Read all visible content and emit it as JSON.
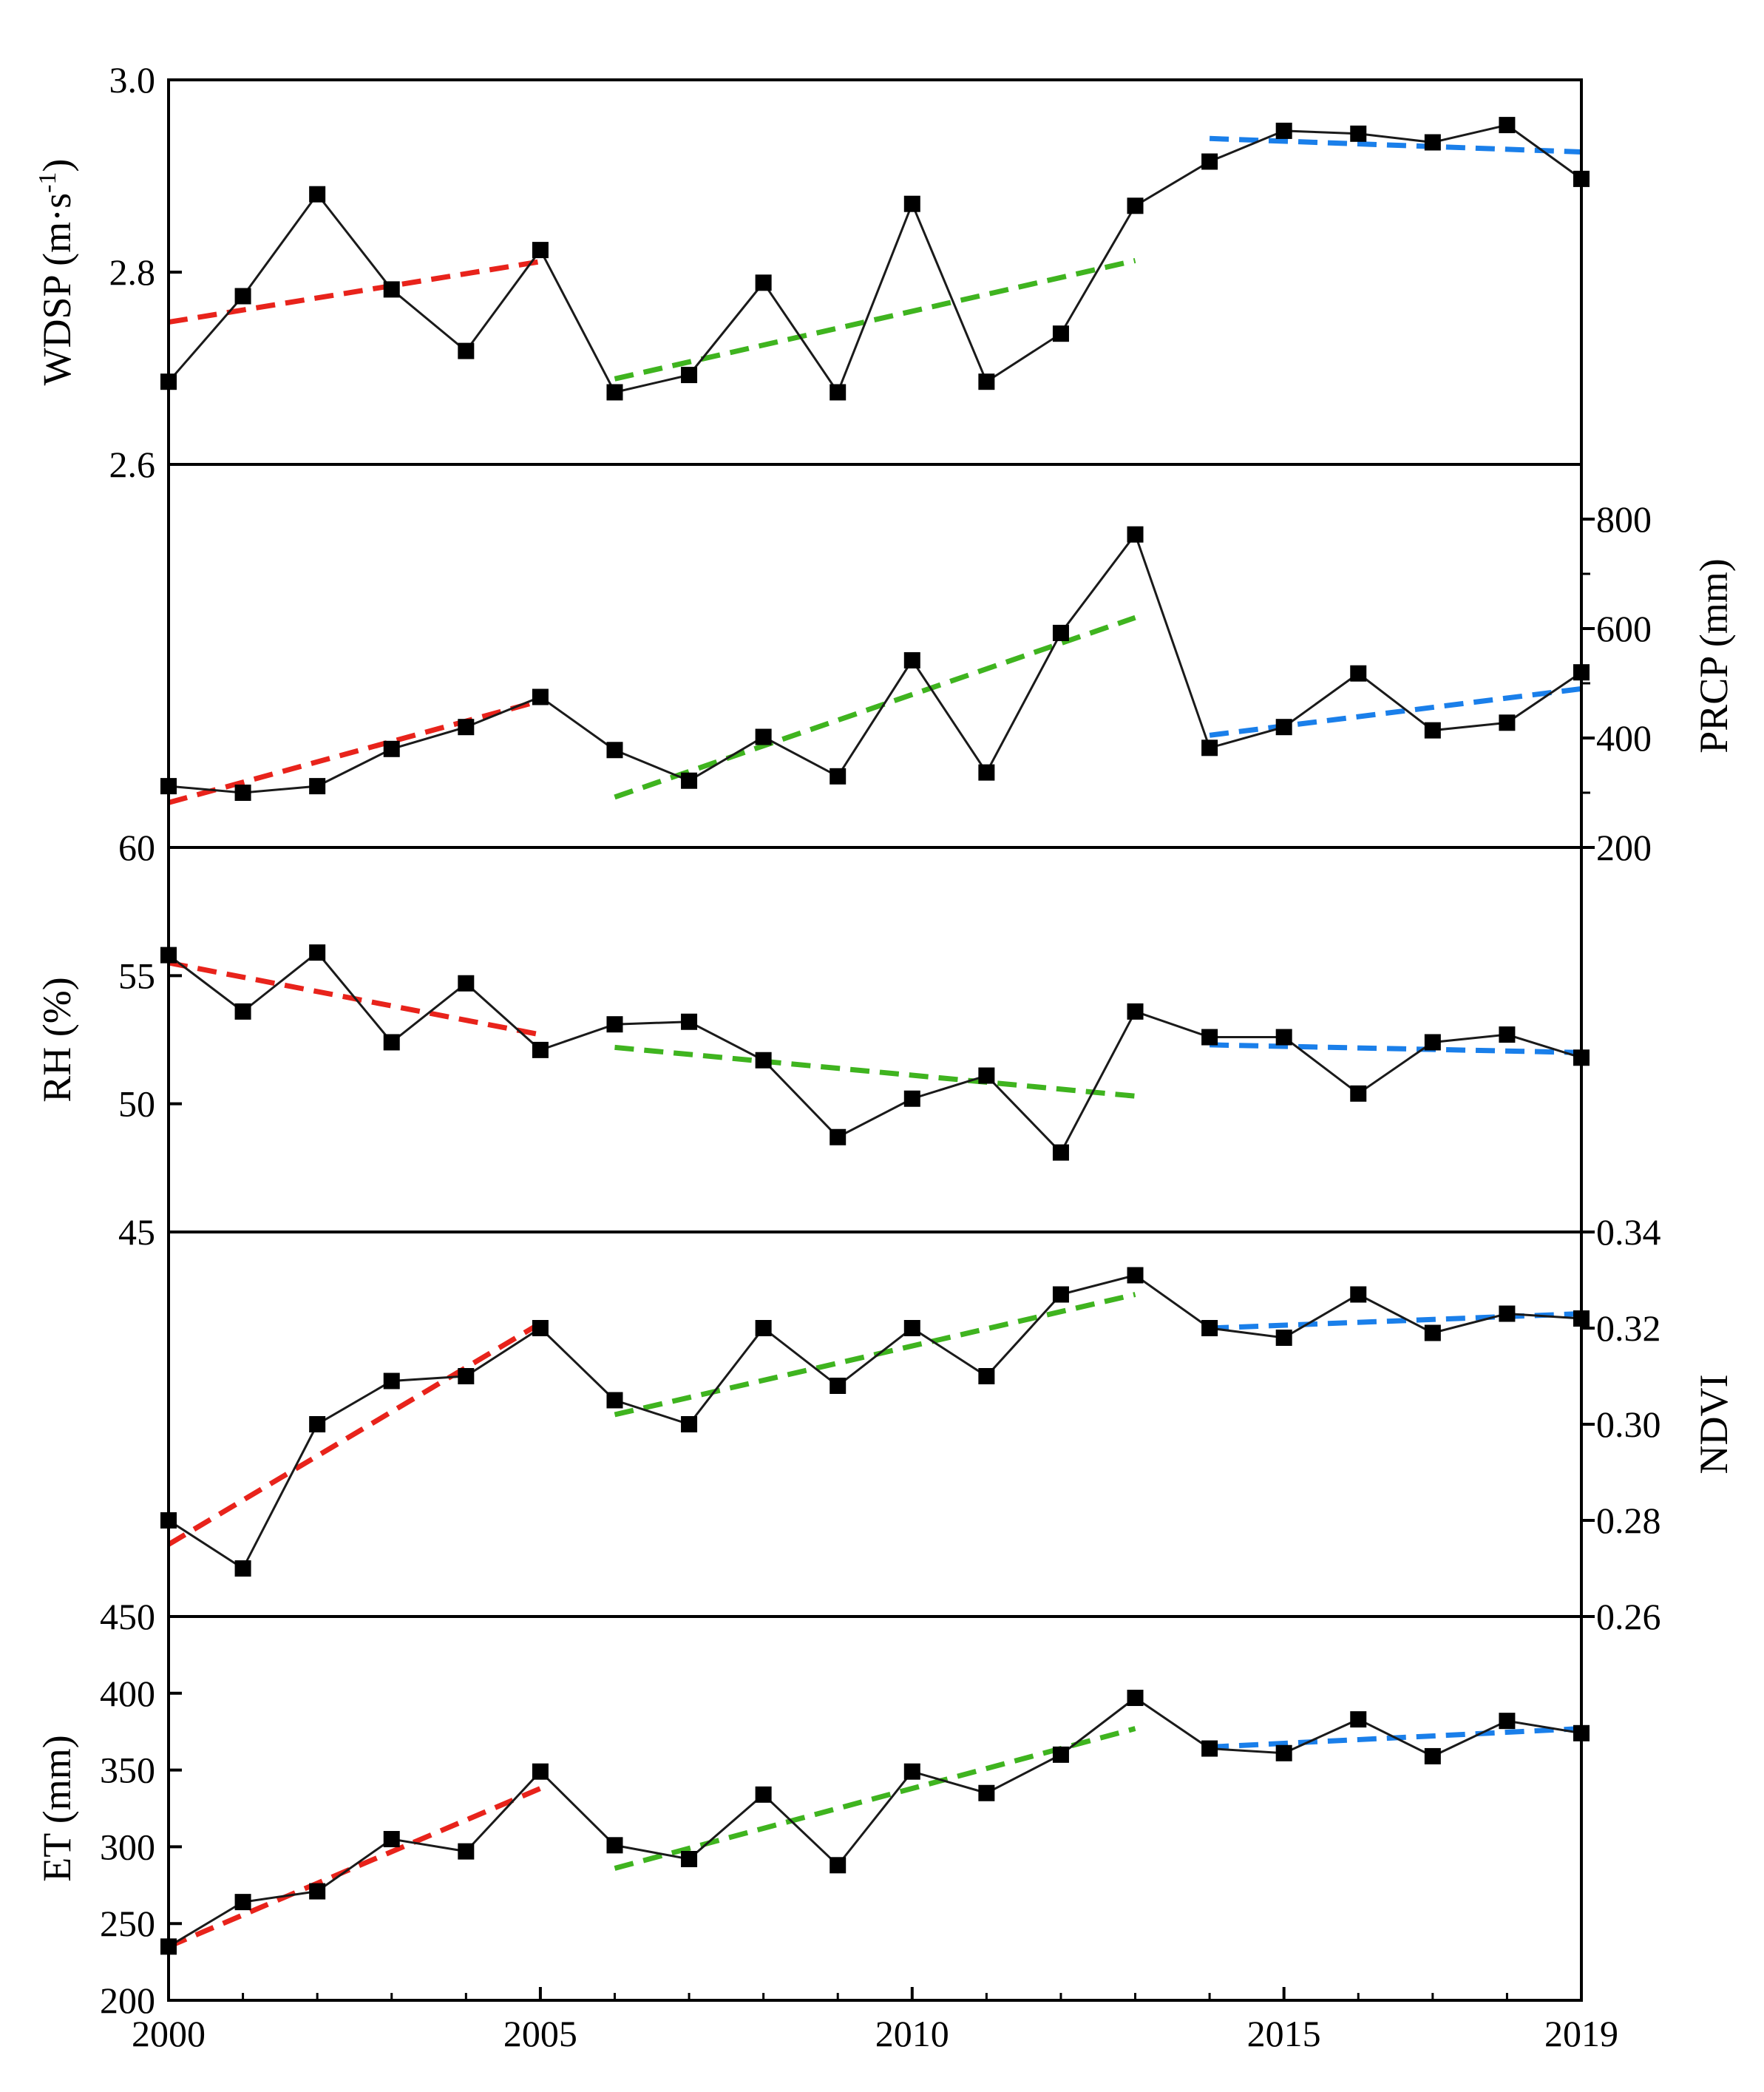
{
  "chart_data": [
    {
      "type": "line",
      "panel": "wdsp",
      "ylabel": "WDSP (m·s-1)",
      "ylabel_parts": [
        "WDSP (m·s",
        "-1",
        ")"
      ],
      "y_axis_side": "left",
      "ylim": [
        2.6,
        3.0
      ],
      "yticks": [
        2.6,
        2.8,
        3.0
      ],
      "ytick_labels": [
        "2.6",
        "2.8",
        "3.0"
      ],
      "x": [
        2000,
        2001,
        2002,
        2003,
        2004,
        2005,
        2006,
        2007,
        2008,
        2009,
        2010,
        2011,
        2012,
        2013,
        2014,
        2015,
        2016,
        2017,
        2018,
        2019
      ],
      "values": [
        2.686,
        2.775,
        2.881,
        2.782,
        2.718,
        2.823,
        2.675,
        2.693,
        2.789,
        2.675,
        2.871,
        2.686,
        2.736,
        2.869,
        2.915,
        2.947,
        2.944,
        2.935,
        2.953,
        2.897
      ],
      "trends": [
        {
          "name": "trend-2000-2005",
          "color": "#e8231b",
          "x": [
            2000,
            2005
          ],
          "y": [
            2.748,
            2.811
          ]
        },
        {
          "name": "trend-2006-2013",
          "color": "#3fb41f",
          "x": [
            2006,
            2013
          ],
          "y": [
            2.689,
            2.812
          ]
        },
        {
          "name": "trend-2014-2019",
          "color": "#1a7fea",
          "x": [
            2014,
            2019
          ],
          "y": [
            2.939,
            2.925
          ]
        }
      ]
    },
    {
      "type": "line",
      "panel": "prcp",
      "ylabel": "PRCP (mm)",
      "y_axis_side": "right",
      "ylim": [
        200,
        900
      ],
      "yticks": [
        200,
        400,
        600,
        800
      ],
      "ytick_labels": [
        "200",
        "400",
        "600",
        "800"
      ],
      "yticks_minor": [
        300,
        500,
        700
      ],
      "x": [
        2000,
        2001,
        2002,
        2003,
        2004,
        2005,
        2006,
        2007,
        2008,
        2009,
        2010,
        2011,
        2012,
        2013,
        2014,
        2015,
        2016,
        2017,
        2018,
        2019
      ],
      "values": [
        312,
        300,
        312,
        380,
        420,
        475,
        378,
        322,
        402,
        330,
        542,
        337,
        592,
        772,
        382,
        420,
        518,
        414,
        428,
        520
      ],
      "trends": [
        {
          "name": "trend-2000-2005",
          "color": "#e8231b",
          "x": [
            2000,
            2005
          ],
          "y": [
            282,
            468
          ]
        },
        {
          "name": "trend-2006-2013",
          "color": "#3fb41f",
          "x": [
            2006,
            2013
          ],
          "y": [
            292,
            620
          ]
        },
        {
          "name": "trend-2014-2019",
          "color": "#1a7fea",
          "x": [
            2014,
            2019
          ],
          "y": [
            405,
            490
          ]
        }
      ]
    },
    {
      "type": "line",
      "panel": "rh",
      "ylabel": "RH (%)",
      "y_axis_side": "left",
      "ylim": [
        45,
        60
      ],
      "yticks": [
        45,
        50,
        55,
        60
      ],
      "ytick_labels": [
        "45",
        "50",
        "55",
        "60"
      ],
      "x": [
        2000,
        2001,
        2002,
        2003,
        2004,
        2005,
        2006,
        2007,
        2008,
        2009,
        2010,
        2011,
        2012,
        2013,
        2014,
        2015,
        2016,
        2017,
        2018,
        2019
      ],
      "values": [
        55.8,
        53.6,
        55.9,
        52.4,
        54.7,
        52.1,
        53.1,
        53.2,
        51.7,
        48.7,
        50.2,
        51.1,
        48.1,
        53.6,
        52.6,
        52.6,
        50.4,
        52.4,
        52.7,
        51.8
      ],
      "trends": [
        {
          "name": "trend-2000-2005",
          "color": "#e8231b",
          "x": [
            2000,
            2005
          ],
          "y": [
            55.5,
            52.7
          ]
        },
        {
          "name": "trend-2006-2013",
          "color": "#3fb41f",
          "x": [
            2006,
            2013
          ],
          "y": [
            52.2,
            50.3
          ]
        },
        {
          "name": "trend-2014-2019",
          "color": "#1a7fea",
          "x": [
            2014,
            2019
          ],
          "y": [
            52.3,
            52.0
          ]
        }
      ]
    },
    {
      "type": "line",
      "panel": "ndvi",
      "ylabel": "NDVI",
      "y_axis_side": "right",
      "ylim": [
        0.26,
        0.34
      ],
      "yticks": [
        0.26,
        0.28,
        0.3,
        0.32,
        0.34
      ],
      "ytick_labels": [
        "0.26",
        "0.28",
        "0.30",
        "0.32",
        "0.34"
      ],
      "x": [
        2000,
        2001,
        2002,
        2003,
        2004,
        2005,
        2006,
        2007,
        2008,
        2009,
        2010,
        2011,
        2012,
        2013,
        2014,
        2015,
        2016,
        2017,
        2018,
        2019
      ],
      "values": [
        0.28,
        0.27,
        0.3,
        0.309,
        0.31,
        0.32,
        0.305,
        0.3,
        0.32,
        0.308,
        0.32,
        0.31,
        0.327,
        0.331,
        0.32,
        0.318,
        0.327,
        0.319,
        0.323,
        0.322
      ],
      "trends": [
        {
          "name": "trend-2000-2005",
          "color": "#e8231b",
          "x": [
            2000,
            2005
          ],
          "y": [
            0.275,
            0.321
          ]
        },
        {
          "name": "trend-2006-2013",
          "color": "#3fb41f",
          "x": [
            2006,
            2013
          ],
          "y": [
            0.302,
            0.327
          ]
        },
        {
          "name": "trend-2014-2019",
          "color": "#1a7fea",
          "x": [
            2014,
            2019
          ],
          "y": [
            0.32,
            0.323
          ]
        }
      ]
    },
    {
      "type": "line",
      "panel": "et",
      "ylabel": "ET (mm)",
      "y_axis_side": "left",
      "ylim": [
        200,
        450
      ],
      "yticks": [
        200,
        250,
        300,
        350,
        400,
        450
      ],
      "ytick_labels": [
        "200",
        "250",
        "300",
        "350",
        "400",
        "450"
      ],
      "xlim": [
        2000,
        2019
      ],
      "xticks": [
        2000,
        2005,
        2010,
        2015,
        2019
      ],
      "xtick_labels": [
        "2000",
        "2005",
        "2010",
        "2015",
        "2019"
      ],
      "x": [
        2000,
        2001,
        2002,
        2003,
        2004,
        2005,
        2006,
        2007,
        2008,
        2009,
        2010,
        2011,
        2012,
        2013,
        2014,
        2015,
        2016,
        2017,
        2018,
        2019
      ],
      "values": [
        235,
        264,
        271,
        305,
        297,
        349,
        301,
        292,
        334,
        288,
        349,
        335,
        360,
        397,
        364,
        361,
        383,
        359,
        382,
        374
      ],
      "trends": [
        {
          "name": "trend-2000-2005",
          "color": "#e8231b",
          "x": [
            2000,
            2005
          ],
          "y": [
            235,
            338
          ]
        },
        {
          "name": "trend-2006-2013",
          "color": "#3fb41f",
          "x": [
            2006,
            2013
          ],
          "y": [
            286,
            377
          ]
        },
        {
          "name": "trend-2014-2019",
          "color": "#1a7fea",
          "x": [
            2014,
            2019
          ],
          "y": [
            365,
            377
          ]
        }
      ]
    }
  ]
}
